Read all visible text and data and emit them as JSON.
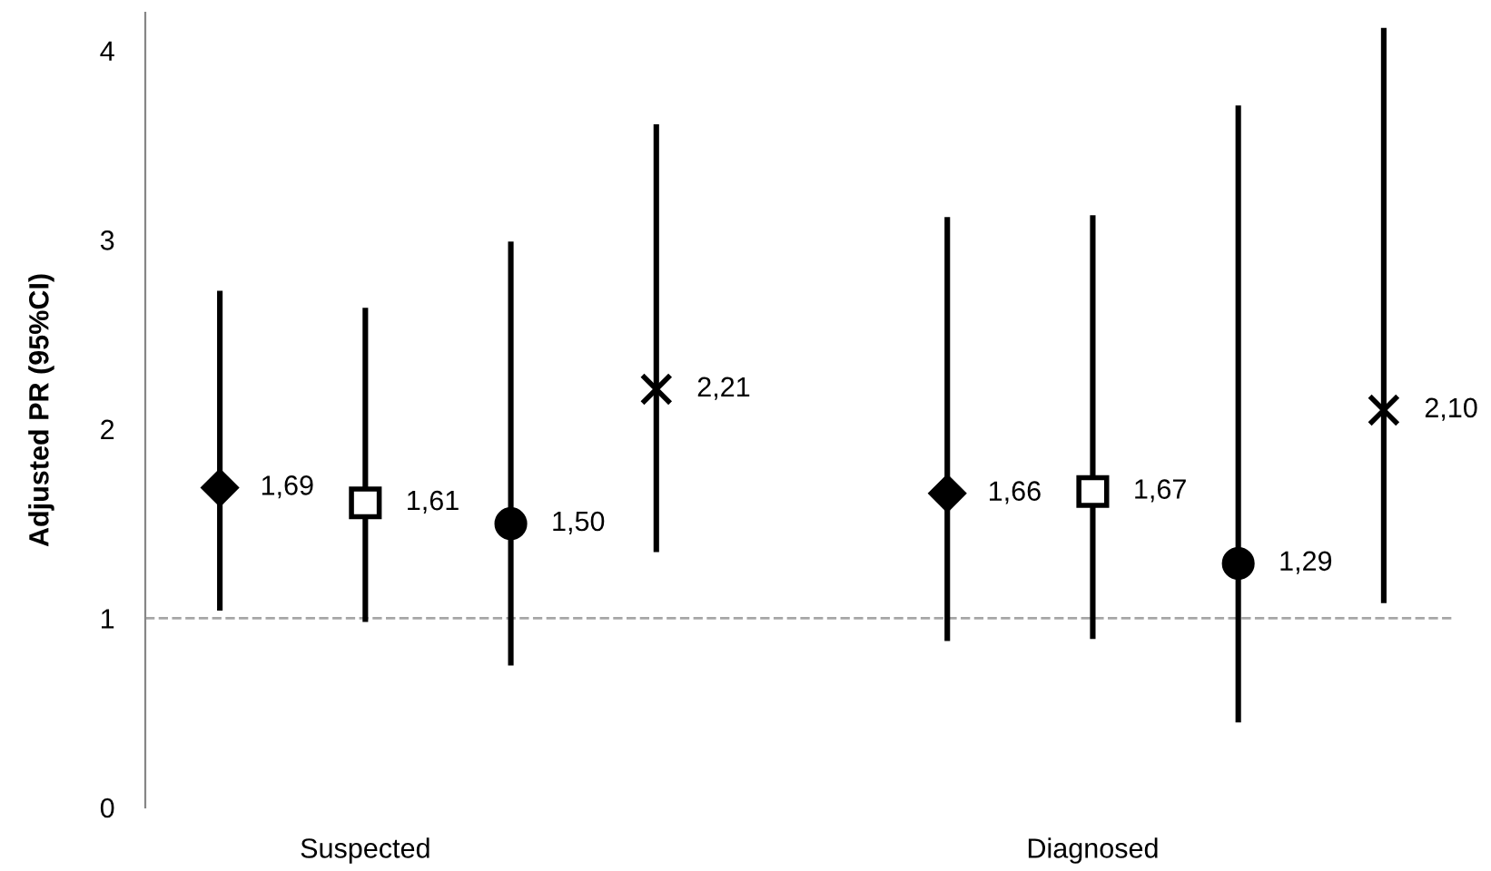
{
  "chart_data": {
    "type": "scatter",
    "ylabel": "Adjusted PR (95%CI)",
    "categories": [
      "Suspected",
      "Diagnosed"
    ],
    "ylim": [
      0,
      4.2
    ],
    "yticks": [
      0,
      1,
      2,
      3,
      4
    ],
    "grid": false,
    "legend": false,
    "line_style": "solid",
    "series": [
      {
        "color": "#000000",
        "marker": "diamond",
        "values": [
          1.69,
          1.66
        ],
        "errors": [
          [
            1.04,
            2.73
          ],
          [
            0.88,
            3.12
          ]
        ],
        "value_labels": [
          "1,69",
          "1,66"
        ]
      },
      {
        "color": "#000000",
        "marker": "square",
        "values": [
          1.61,
          1.67
        ],
        "errors": [
          [
            0.98,
            2.64
          ],
          [
            0.89,
            3.13
          ]
        ],
        "value_labels": [
          "1,61",
          "1,67"
        ]
      },
      {
        "color": "#000000",
        "marker": "circle",
        "values": [
          1.5,
          1.29
        ],
        "errors": [
          [
            0.75,
            2.99
          ],
          [
            0.45,
            3.71
          ]
        ],
        "value_labels": [
          "1,50",
          "1,29"
        ]
      },
      {
        "color": "#000000",
        "marker": "cross",
        "values": [
          2.21,
          2.1
        ],
        "errors": [
          [
            1.35,
            3.61
          ],
          [
            1.08,
            4.12
          ]
        ],
        "value_labels": [
          "2,21",
          "2,10"
        ]
      }
    ],
    "ref_lines": [
      {
        "axis": "y",
        "value": 1,
        "color": "#a6a6a6",
        "line_style": "dashed"
      }
    ]
  }
}
